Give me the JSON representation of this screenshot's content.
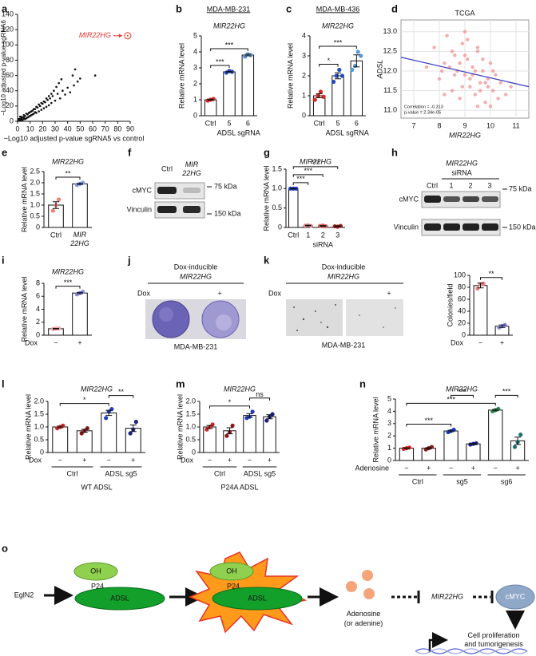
{
  "chart_data": [
    {
      "type": "scatter",
      "panel": "a",
      "ylabel": [
        "−Log10 adjusted p-value sgRNA6",
        "vs control"
      ],
      "xlabel": "−Log10 adjusted p-value sgRNA5 vs control",
      "x": [
        1,
        2,
        3,
        4,
        5,
        6,
        7,
        8,
        9,
        10,
        11,
        12,
        13,
        14,
        15,
        16,
        17,
        18,
        19,
        20,
        21,
        22,
        23,
        24,
        25,
        26,
        27,
        28,
        30,
        32,
        34,
        36,
        38,
        40,
        42,
        45,
        48,
        50,
        2,
        4,
        6,
        8,
        10,
        12,
        14,
        3,
        5,
        7,
        9,
        11,
        13,
        15,
        17,
        19,
        21,
        23,
        25,
        27,
        29,
        31,
        33,
        35,
        44,
        1,
        2,
        3,
        5,
        46,
        62
      ],
      "values": [
        1,
        3,
        2,
        5,
        3,
        7,
        4,
        9,
        6,
        12,
        8,
        14,
        10,
        16,
        11,
        18,
        13,
        20,
        15,
        23,
        17,
        25,
        19,
        28,
        21,
        30,
        24,
        33,
        27,
        36,
        30,
        40,
        35,
        44,
        38,
        47,
        52,
        56,
        6,
        2,
        3,
        5,
        7,
        9,
        12,
        4,
        8,
        10,
        11,
        13,
        16,
        19,
        22,
        24,
        26,
        30,
        33,
        36,
        40,
        45,
        50,
        55,
        60,
        3,
        1,
        6,
        5,
        68,
        60
      ],
      "color": "#111111",
      "xlim": [
        0,
        90
      ],
      "xticks": [
        0,
        10,
        20,
        30,
        40,
        50,
        60,
        70,
        80,
        90
      ],
      "ylim": [
        0,
        140
      ],
      "yticks": [
        0,
        20,
        40,
        60,
        80,
        100,
        120,
        140
      ],
      "annotation": {
        "label": "MIR22HG",
        "x": 88,
        "value": 112,
        "color": "#e8332a"
      }
    },
    {
      "type": "bar",
      "panel": "b",
      "header": "MDA-MB-231",
      "title": "MIR22HG",
      "ylabel": "Relative mRNA level",
      "categories": [
        "Ctrl",
        "5",
        "6"
      ],
      "values": [
        1,
        2.75,
        3.8
      ],
      "errors": [
        0.03,
        0.03,
        0.05
      ],
      "points": [
        [
          0.95,
          1.0,
          1.05
        ],
        [
          2.7,
          2.8,
          2.75
        ],
        [
          3.7,
          3.85,
          3.8
        ]
      ],
      "colors": [
        "#d62728",
        "#1f4fbf",
        "#5b9bd5"
      ],
      "ylim": [
        0,
        5
      ],
      "yticks": [
        0,
        1,
        2,
        3,
        4,
        5
      ],
      "groups": [
        {
          "label": "ADSL sgRNA",
          "span": [
            1,
            2
          ]
        }
      ],
      "significance": [
        {
          "pair": [
            0,
            1
          ],
          "label": "***"
        },
        {
          "pair": [
            0,
            2
          ],
          "label": "***"
        }
      ]
    },
    {
      "type": "bar",
      "panel": "c",
      "header": "MDA-MB-436",
      "title": "MIR22HG",
      "ylabel": "Relative mRNA level",
      "categories": [
        "Ctrl",
        "5",
        "6"
      ],
      "values": [
        1,
        2.0,
        2.75
      ],
      "errors": [
        0.1,
        0.15,
        0.3
      ],
      "points": [
        [
          0.8,
          1.0,
          1.2,
          0.95
        ],
        [
          1.7,
          2.0,
          2.3,
          2.0
        ],
        [
          2.3,
          2.5,
          3.2,
          3.0
        ]
      ],
      "colors": [
        "#d62728",
        "#1f4fbf",
        "#5b9bd5"
      ],
      "ylim": [
        0,
        4
      ],
      "yticks": [
        0,
        1,
        2,
        3,
        4
      ],
      "groups": [
        {
          "label": "ADSL sgRNA",
          "span": [
            1,
            2
          ]
        }
      ],
      "significance": [
        {
          "pair": [
            0,
            1
          ],
          "label": "*"
        },
        {
          "pair": [
            0,
            2
          ],
          "label": "***"
        }
      ]
    },
    {
      "type": "scatter",
      "panel": "d",
      "title": "TCGA",
      "xlabel": "MIR22HG",
      "ylabel": "ADSL",
      "x": [
        7.8,
        8.0,
        8.2,
        8.3,
        8.5,
        8.6,
        8.7,
        8.8,
        8.9,
        9.0,
        9.1,
        9.2,
        9.3,
        9.4,
        9.5,
        9.6,
        9.7,
        9.8,
        9.9,
        10.0,
        10.1,
        10.2,
        10.3,
        10.4,
        8.1,
        8.4,
        8.9,
        9.1,
        9.3,
        9.5,
        9.7,
        9.9,
        10.1,
        8.6,
        8.8,
        9.0,
        9.2,
        9.4,
        9.6,
        9.8,
        7.5,
        10.6,
        10.8,
        9.0,
        8.5,
        9.5,
        10.0,
        8.2
      ],
      "values": [
        12.6,
        11.8,
        12.2,
        12.9,
        11.5,
        12.4,
        12.0,
        11.3,
        12.7,
        11.9,
        12.3,
        11.6,
        12.1,
        11.4,
        12.5,
        11.7,
        12.0,
        11.2,
        11.8,
        12.2,
        11.5,
        11.9,
        11.3,
        11.7,
        12.0,
        12.1,
        11.6,
        12.8,
        11.9,
        11.1,
        12.3,
        11.6,
        12.0,
        11.9,
        12.2,
        12.4,
        11.8,
        12.0,
        11.5,
        11.7,
        12.1,
        11.4,
        11.6,
        13.0,
        12.5,
        12.6,
        11.1,
        11.4
      ],
      "color": "#f08a8a",
      "xlim": [
        6.5,
        11.5
      ],
      "xticks": [
        7,
        8,
        9,
        10,
        11
      ],
      "ylim": [
        10.8,
        13.3
      ],
      "yticks": [
        {
          "value": 11,
          "label": "11.0"
        },
        11.5,
        {
          "value": 12,
          "label": "12.0"
        },
        12.5,
        {
          "value": 13,
          "label": "13.0"
        }
      ],
      "grid": true,
      "fit": {
        "x": [
          6.5,
          11.5
        ],
        "values": [
          12.35,
          11.6
        ],
        "color": "#3b3bbf"
      },
      "stats": [
        "Correlation = -0.313",
        "p-value = 2.34e-05"
      ]
    },
    {
      "type": "bar",
      "panel": "e",
      "title": "MIR22HG",
      "ylabel": "Relative mRNA level",
      "categories": [
        "Ctrl",
        [
          "MIR",
          "22HG"
        ]
      ],
      "values": [
        1,
        1.95
      ],
      "errors": [
        0.15,
        0.03
      ],
      "points": [
        [
          0.75,
          1.0,
          1.25
        ],
        [
          1.9,
          1.95,
          2.0
        ]
      ],
      "colors": [
        "#f08080",
        "#8a9be8"
      ],
      "ylim": [
        0,
        2.5
      ],
      "yticks": [
        0,
        0.5,
        {
          "value": 1,
          "label": "1.0"
        },
        1.5,
        {
          "value": 2,
          "label": "2.0"
        },
        2.5
      ],
      "significance": [
        {
          "pair": [
            0,
            1
          ],
          "label": "**"
        }
      ]
    },
    {
      "type": "bar",
      "panel": "g",
      "title": "MIR22HG",
      "ylabel": "Relative mRNA level",
      "categories": [
        "Ctrl",
        "1",
        "2",
        "3"
      ],
      "values": [
        1,
        0.05,
        0.04,
        0.03
      ],
      "errors": [
        0.01,
        0.01,
        0.01,
        0.01
      ],
      "points": [
        [
          1,
          1,
          1
        ],
        [
          0.05,
          0.06,
          0.04
        ],
        [
          0.04,
          0.05,
          0.03
        ],
        [
          0.03,
          0.02,
          0.04
        ]
      ],
      "colors": [
        "#1f3fbf",
        "#f4a0a0",
        "#e06060",
        "#a02020"
      ],
      "ylim": [
        0,
        1.5
      ],
      "yticks": [
        0,
        0.5,
        {
          "value": 1,
          "label": "1.0"
        },
        1.5
      ],
      "groups": [
        {
          "label": "siRNA",
          "span": [
            1,
            3
          ]
        }
      ],
      "significance": [
        {
          "pair": [
            0,
            1
          ],
          "label": "***"
        },
        {
          "pair": [
            0,
            2
          ],
          "label": "***"
        },
        {
          "pair": [
            0,
            3
          ],
          "label": "***"
        }
      ]
    },
    {
      "type": "bar",
      "panel": "i",
      "title": "MIR22HG",
      "ylabel": "Relative mRNA level",
      "categories": [
        "−",
        "+"
      ],
      "row_label": "Dox",
      "values": [
        1,
        6.5
      ],
      "errors": [
        0.05,
        0.1
      ],
      "points": [
        [
          0.95,
          1,
          1.05
        ],
        [
          6.3,
          6.5,
          6.7
        ]
      ],
      "colors": [
        "#f4a0a0",
        "#8a8ae8"
      ],
      "ylim": [
        0,
        8
      ],
      "yticks": [
        0,
        2,
        4,
        6,
        8
      ],
      "significance": [
        {
          "pair": [
            0,
            1
          ],
          "label": "***"
        }
      ]
    },
    {
      "type": "bar",
      "ylabel": "Colonies/field",
      "categories": [
        "−",
        "+"
      ],
      "row_label": "Dox",
      "values": [
        83,
        15
      ],
      "errors": [
        4,
        2
      ],
      "points": [
        [
          78,
          85,
          86
        ],
        [
          13,
          15,
          17
        ]
      ],
      "colors": [
        "#f08080",
        "#8080e0"
      ],
      "ylim": [
        0,
        100
      ],
      "yticks": [
        0,
        20,
        40,
        60,
        80,
        100
      ],
      "significance": [
        {
          "pair": [
            0,
            1
          ],
          "label": "**"
        }
      ]
    },
    {
      "type": "bar",
      "panel": "l",
      "title": "MIR22HG",
      "ylabel": "Relative mRNA level",
      "categories": [
        "−",
        "+",
        "−",
        "+"
      ],
      "row_label": "Dox",
      "values": [
        1.0,
        0.85,
        1.55,
        0.95
      ],
      "errors": [
        0.03,
        0.06,
        0.1,
        0.13
      ],
      "points": [
        [
          0.95,
          1.0,
          1.05
        ],
        [
          0.75,
          0.85,
          0.95
        ],
        [
          1.35,
          1.6,
          1.7
        ],
        [
          0.75,
          0.9,
          1.2
        ]
      ],
      "colors": [
        "#d62728",
        "#8b1a1a",
        "#1f3fbf",
        "#1a237e"
      ],
      "ylim": [
        0,
        2
      ],
      "yticks": [
        0,
        0.5,
        {
          "value": 1,
          "label": "1.0"
        },
        1.5,
        {
          "value": 2,
          "label": "2.0"
        }
      ],
      "groups": [
        {
          "label": "Ctrl",
          "span": [
            0,
            1
          ]
        },
        {
          "label": "ADSL sg5",
          "span": [
            2,
            3
          ]
        }
      ],
      "group_rule": true,
      "footer": "WT ADSL",
      "significance": [
        {
          "pair": [
            0,
            2
          ],
          "label": "*"
        },
        {
          "pair": [
            2,
            3
          ],
          "label": "**"
        }
      ]
    },
    {
      "type": "bar",
      "panel": "m",
      "title": "MIR22HG",
      "ylabel": "Relative mRNA level",
      "categories": [
        "−",
        "+",
        "−",
        "+"
      ],
      "row_label": "Dox",
      "values": [
        1.0,
        0.85,
        1.45,
        1.4
      ],
      "errors": [
        0.06,
        0.12,
        0.07,
        0.08
      ],
      "points": [
        [
          0.9,
          1.0,
          1.1
        ],
        [
          0.65,
          0.8,
          1.05
        ],
        [
          1.35,
          1.4,
          1.6
        ],
        [
          1.25,
          1.4,
          1.5
        ]
      ],
      "colors": [
        "#d62728",
        "#8b1a1a",
        "#1f3fbf",
        "#1a237e"
      ],
      "ylim": [
        0,
        2
      ],
      "yticks": [
        0,
        0.5,
        {
          "value": 1,
          "label": "1.0"
        },
        1.5,
        {
          "value": 2,
          "label": "2.0"
        }
      ],
      "groups": [
        {
          "label": "Ctrl",
          "span": [
            0,
            1
          ]
        },
        {
          "label": "ADSL sg5",
          "span": [
            2,
            3
          ]
        }
      ],
      "group_rule": true,
      "footer": "P24A ADSL",
      "significance": [
        {
          "pair": [
            0,
            2
          ],
          "label": "*"
        },
        {
          "pair": [
            2,
            3
          ],
          "label": "ns"
        }
      ]
    },
    {
      "type": "bar",
      "panel": "n",
      "title": "MIR22HG",
      "ylabel": "Relative mRNA level",
      "categories": [
        "−",
        "+",
        "−",
        "+",
        "−",
        "+"
      ],
      "row_label": "Adenosine",
      "values": [
        1.0,
        1.0,
        2.4,
        1.35,
        4.1,
        1.6
      ],
      "errors": [
        0.03,
        0.05,
        0.06,
        0.03,
        0.06,
        0.3
      ],
      "points": [
        [
          0.95,
          1.0,
          1.05
        ],
        [
          0.9,
          1.0,
          1.1
        ],
        [
          2.3,
          2.4,
          2.5
        ],
        [
          1.3,
          1.35,
          1.4
        ],
        [
          4.0,
          4.1,
          4.2
        ],
        [
          1.1,
          1.5,
          2.1
        ]
      ],
      "colors": [
        "#d62728",
        "#8b1a1a",
        "#1f3fbf",
        "#1a237e",
        "#2e8b57",
        "#1f6f6f"
      ],
      "ylim": [
        0,
        5
      ],
      "yticks": [
        0,
        1,
        2,
        3,
        4,
        5
      ],
      "groups": [
        {
          "label": "Ctrl",
          "span": [
            0,
            1
          ]
        },
        {
          "label": "sg5",
          "span": [
            2,
            3
          ]
        },
        {
          "label": "sg6",
          "span": [
            4,
            5
          ]
        }
      ],
      "group_rule": true,
      "significance": [
        {
          "pair": [
            0,
            2
          ],
          "label": "***"
        },
        {
          "pair": [
            0,
            4
          ],
          "label": "***"
        },
        {
          "pair": [
            2,
            3
          ],
          "label": "***"
        },
        {
          "pair": [
            4,
            5
          ],
          "label": "***"
        }
      ]
    }
  ],
  "blot_f": {
    "panel": "f",
    "lanes": [
      "Ctrl",
      [
        "MIR",
        "22HG"
      ]
    ],
    "proteins": [
      "cMYC",
      "Vinculin"
    ],
    "markers": [
      "75 kDa",
      "150 kDa"
    ]
  },
  "blot_h": {
    "panel": "h",
    "treatment": [
      "MIR22HG",
      "siRNA"
    ],
    "lanes": [
      "Ctrl",
      "1",
      "2",
      "3"
    ],
    "proteins": [
      "cMYC",
      "Vinculin"
    ],
    "markers": [
      "75 kDa",
      "150 kDa"
    ]
  },
  "panel_j": {
    "panel": "j",
    "title": [
      "Dox-inducible",
      "MIR22HG"
    ],
    "row_label": "Dox",
    "condition": "+",
    "cell_line": "MDA-MB-231"
  },
  "panel_k": {
    "panel": "k",
    "title": [
      "Dox-inducible",
      "MIR22HG"
    ],
    "row_label": "Dox",
    "condition": "+",
    "cell_line": "MDA-MB-231"
  },
  "diagram_o": {
    "panel": "o",
    "nodes": [
      "EglN2",
      "OH",
      "P24",
      "ADSL",
      "OH",
      "P24",
      "ADSL",
      [
        "Adenosine",
        "(or adenine)"
      ],
      "MIR22HG",
      "cMYC",
      [
        "Cell proliferation",
        "and tumorigenesis"
      ]
    ]
  }
}
